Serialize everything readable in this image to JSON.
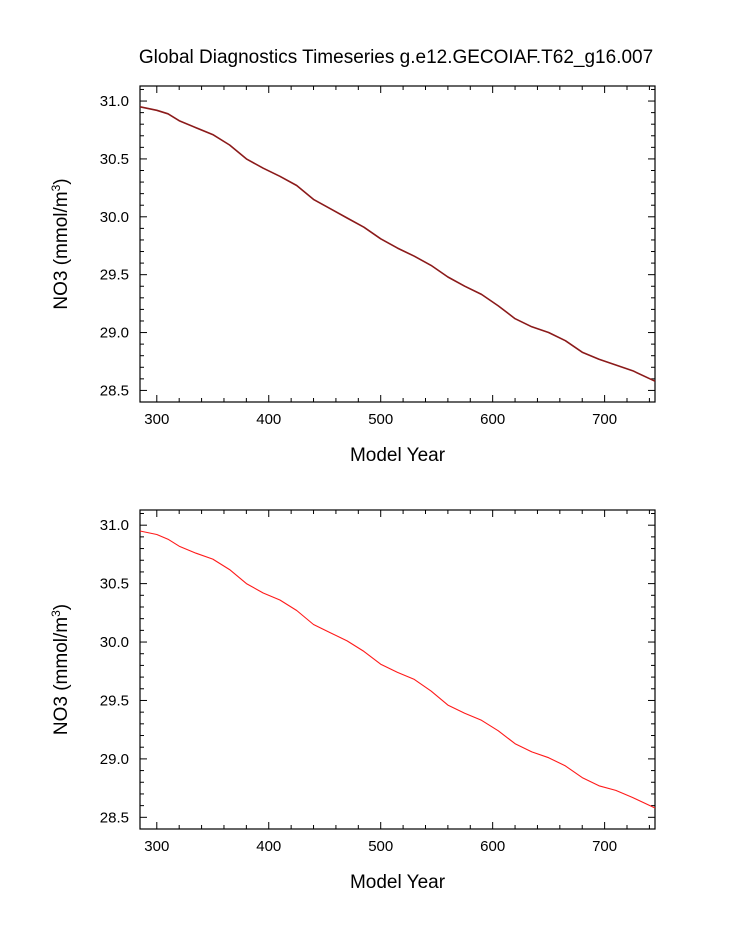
{
  "title": "Global Diagnostics Timeseries g.e12.GECOIAF.T62_g16.007",
  "chart_data": [
    {
      "type": "line",
      "xlabel": "Model Year",
      "ylabel": "NO3 (mmol/m",
      "ylabel_sup": "3",
      "ylabel_close": ")",
      "xlim": [
        285,
        745
      ],
      "ylim": [
        28.4,
        31.13
      ],
      "xticks": [
        300,
        400,
        500,
        600,
        700
      ],
      "xtick_labels": [
        "300",
        "400",
        "500",
        "600",
        "700"
      ],
      "yticks": [
        28.5,
        29.0,
        29.5,
        30.0,
        30.5,
        31.0
      ],
      "ytick_labels": [
        "28.5",
        "29.0",
        "29.5",
        "30.0",
        "30.5",
        "31.0"
      ],
      "series": [
        {
          "color": "#8b1a1a",
          "x": [
            285,
            300,
            310,
            320,
            335,
            350,
            365,
            380,
            395,
            410,
            425,
            440,
            455,
            470,
            485,
            500,
            515,
            530,
            545,
            560,
            575,
            590,
            605,
            620,
            635,
            650,
            665,
            680,
            695,
            710,
            725,
            745
          ],
          "y": [
            30.95,
            30.92,
            30.89,
            30.83,
            30.77,
            30.71,
            30.62,
            30.5,
            30.42,
            30.35,
            30.27,
            30.15,
            30.07,
            29.99,
            29.91,
            29.81,
            29.73,
            29.66,
            29.58,
            29.48,
            29.4,
            29.33,
            29.23,
            29.12,
            29.05,
            29.0,
            28.93,
            28.83,
            28.77,
            28.72,
            28.67,
            28.58
          ]
        }
      ]
    },
    {
      "type": "line",
      "xlabel": "Model Year",
      "ylabel": "NO3 (mmol/m",
      "ylabel_sup": "3",
      "ylabel_close": ")",
      "xlim": [
        285,
        745
      ],
      "ylim": [
        28.4,
        31.13
      ],
      "xticks": [
        300,
        400,
        500,
        600,
        700
      ],
      "xtick_labels": [
        "300",
        "400",
        "500",
        "600",
        "700"
      ],
      "yticks": [
        28.5,
        29.0,
        29.5,
        30.0,
        30.5,
        31.0
      ],
      "ytick_labels": [
        "28.5",
        "29.0",
        "29.5",
        "30.0",
        "30.5",
        "31.0"
      ],
      "series": [
        {
          "color": "#ff1a1a",
          "x": [
            285,
            300,
            310,
            320,
            335,
            350,
            365,
            380,
            395,
            410,
            425,
            440,
            455,
            470,
            485,
            500,
            515,
            530,
            545,
            560,
            575,
            590,
            605,
            620,
            635,
            650,
            665,
            680,
            695,
            710,
            725,
            745
          ],
          "y": [
            30.95,
            30.92,
            30.88,
            30.82,
            30.76,
            30.71,
            30.62,
            30.5,
            30.42,
            30.36,
            30.27,
            30.15,
            30.08,
            30.01,
            29.92,
            29.81,
            29.74,
            29.68,
            29.58,
            29.46,
            29.39,
            29.33,
            29.24,
            29.13,
            29.06,
            29.01,
            28.94,
            28.84,
            28.77,
            28.73,
            28.67,
            28.58
          ]
        }
      ]
    }
  ]
}
